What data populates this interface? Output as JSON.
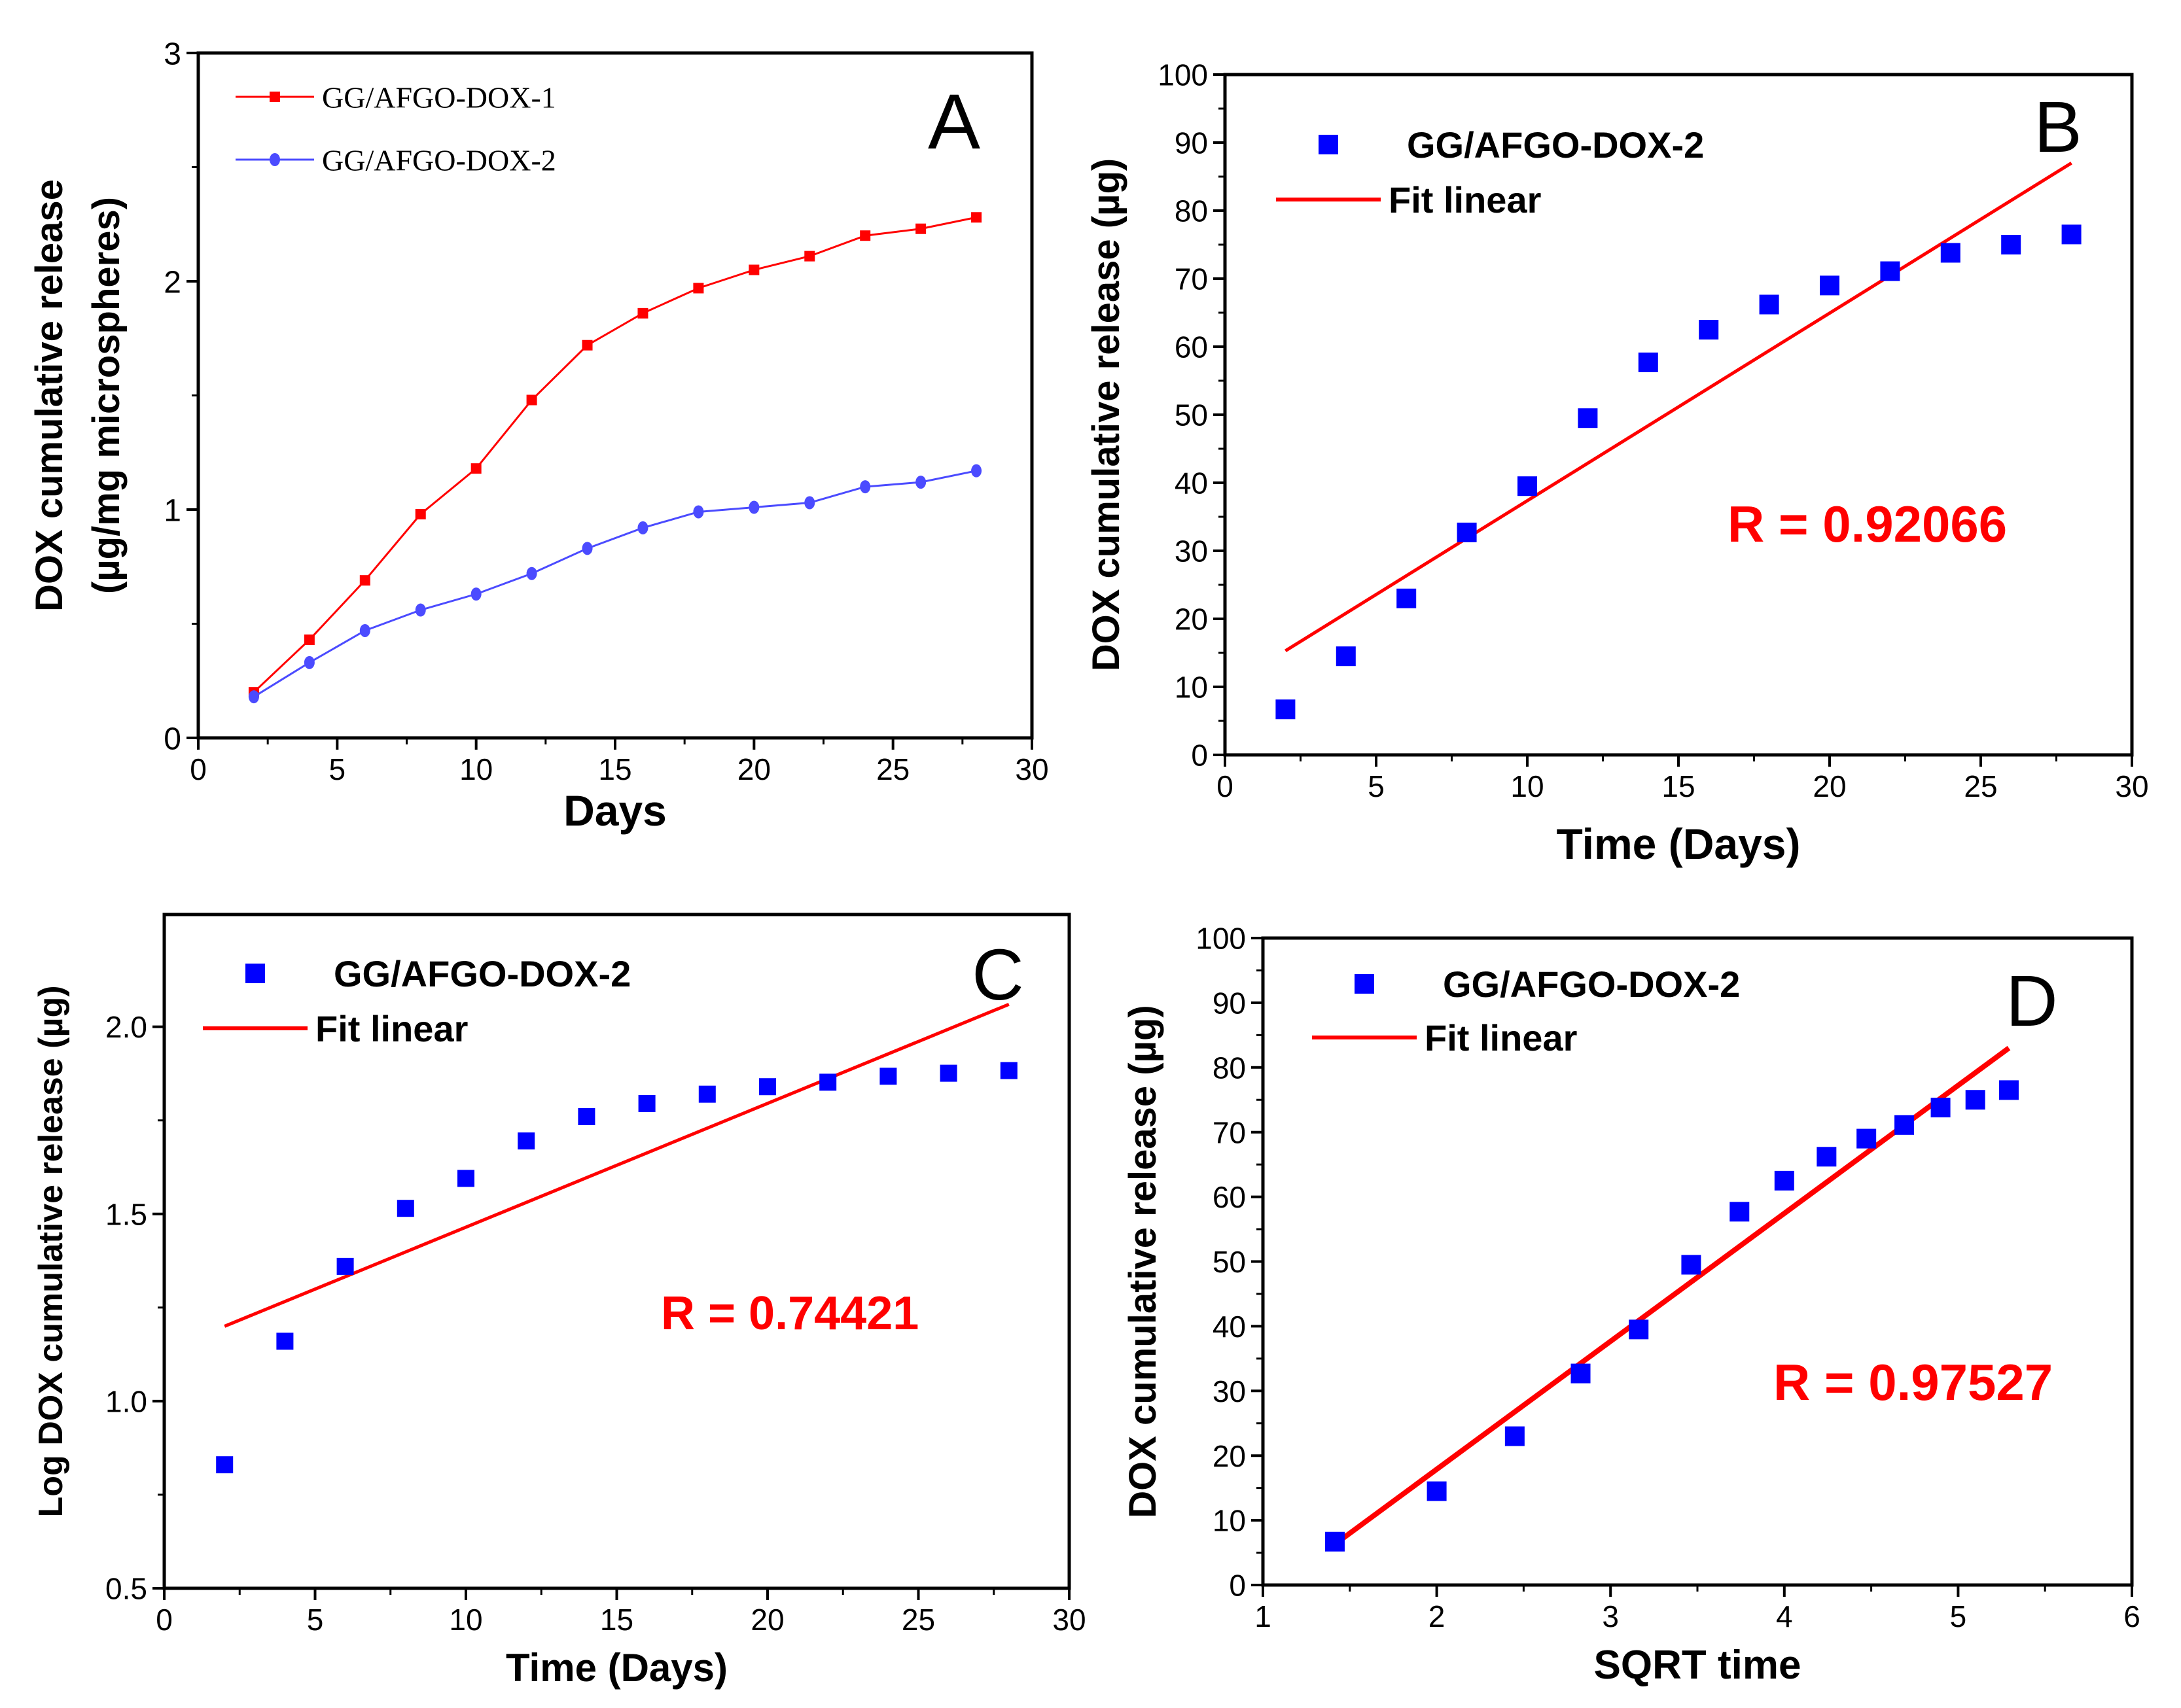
{
  "chart_data": [
    {
      "type": "line",
      "panel_label": "A",
      "xlabel": "Days",
      "ylabel_line1": "DOX cumulative release",
      "ylabel_line2": "(µg/mg microspheres)",
      "xlim": [
        0,
        30
      ],
      "ylim": [
        0,
        3
      ],
      "x_ticks": [
        "0",
        "5",
        "10",
        "15",
        "20",
        "25",
        "30"
      ],
      "y_ticks": [
        "0",
        "1",
        "2",
        "3"
      ],
      "legend_position": "top-left",
      "series": [
        {
          "name": "GG/AFGO-DOX-1",
          "color": "#ff0000",
          "marker": "square",
          "x": [
            2,
            4,
            6,
            8,
            10,
            12,
            14,
            16,
            18,
            20,
            22,
            24,
            26,
            28
          ],
          "y": [
            0.2,
            0.43,
            0.69,
            0.98,
            1.18,
            1.48,
            1.72,
            1.86,
            1.97,
            2.05,
            2.11,
            2.2,
            2.23,
            2.28
          ]
        },
        {
          "name": "GG/AFGO-DOX-2",
          "color": "#4b4bff",
          "marker": "circle",
          "x": [
            2,
            4,
            6,
            8,
            10,
            12,
            14,
            16,
            18,
            20,
            22,
            24,
            26,
            28
          ],
          "y": [
            0.18,
            0.33,
            0.47,
            0.56,
            0.63,
            0.72,
            0.83,
            0.92,
            0.99,
            1.01,
            1.03,
            1.1,
            1.12,
            1.17
          ]
        }
      ]
    },
    {
      "type": "scatter",
      "panel_label": "B",
      "xlabel": "Time (Days)",
      "ylabel": "DOX cumulative release (µg)",
      "xlim": [
        0,
        30
      ],
      "ylim": [
        0,
        100
      ],
      "x_ticks": [
        "0",
        "5",
        "10",
        "15",
        "20",
        "25",
        "30"
      ],
      "y_ticks": [
        "0",
        "10",
        "20",
        "30",
        "40",
        "50",
        "60",
        "70",
        "80",
        "90",
        "100"
      ],
      "legend_position": "top-left",
      "scatter_name": "GG/AFGO-DOX-2",
      "fit_name": "Fit linear",
      "annotation": "R = 0.92066",
      "x": [
        2,
        4,
        6,
        8,
        10,
        12,
        14,
        16,
        18,
        20,
        22,
        24,
        26,
        28
      ],
      "y": [
        6.7,
        14.5,
        23,
        32.7,
        39.5,
        49.5,
        57.7,
        62.5,
        66.2,
        69,
        71.1,
        73.8,
        75,
        76.5
      ],
      "fit_x": [
        2,
        28
      ],
      "fit_y": [
        15.3,
        87
      ]
    },
    {
      "type": "scatter",
      "panel_label": "C",
      "xlabel": "Time (Days)",
      "ylabel": "Log DOX cumulative release (µg)",
      "xlim": [
        0,
        30
      ],
      "ylim": [
        0.5,
        2.3
      ],
      "x_ticks": [
        "0",
        "5",
        "10",
        "15",
        "20",
        "25",
        "30"
      ],
      "y_ticks": [
        "0.5",
        "1.0",
        "1.5",
        "2.0"
      ],
      "legend_position": "top-left",
      "scatter_name": "GG/AFGO-DOX-2",
      "fit_name": "Fit linear",
      "annotation": "R = 0.74421",
      "x": [
        2,
        4,
        6,
        8,
        10,
        12,
        14,
        16,
        18,
        20,
        22,
        24,
        26,
        28
      ],
      "y": [
        0.83,
        1.16,
        1.36,
        1.515,
        1.595,
        1.695,
        1.76,
        1.795,
        1.82,
        1.84,
        1.852,
        1.868,
        1.876,
        1.883
      ],
      "fit_x": [
        2,
        28
      ],
      "fit_y": [
        1.2,
        2.06
      ]
    },
    {
      "type": "scatter",
      "panel_label": "D",
      "xlabel": "SQRT time",
      "ylabel": "DOX cumulative release (µg)",
      "xlim": [
        1,
        6
      ],
      "ylim": [
        0,
        100
      ],
      "x_ticks": [
        "1",
        "2",
        "3",
        "4",
        "5",
        "6"
      ],
      "y_ticks": [
        "0",
        "10",
        "20",
        "30",
        "40",
        "50",
        "60",
        "70",
        "80",
        "90",
        "100"
      ],
      "legend_position": "top-left",
      "scatter_name": "GG/AFGO-DOX-2",
      "fit_name": "Fit linear",
      "annotation": "R = 0.97527",
      "x": [
        1.414,
        2,
        2.449,
        2.828,
        3.162,
        3.464,
        3.742,
        4,
        4.243,
        4.472,
        4.69,
        4.899,
        5.099,
        5.292
      ],
      "y": [
        6.7,
        14.5,
        23,
        32.7,
        39.5,
        49.5,
        57.7,
        62.5,
        66.2,
        69,
        71.1,
        73.8,
        75,
        76.5
      ],
      "fit_x": [
        1.414,
        5.292
      ],
      "fit_y": [
        6.3,
        83
      ]
    }
  ],
  "colors": {
    "red": "#ff0000",
    "blue_marker": "#0000ff",
    "blue_line": "#4b4bff",
    "axis": "#000000"
  }
}
